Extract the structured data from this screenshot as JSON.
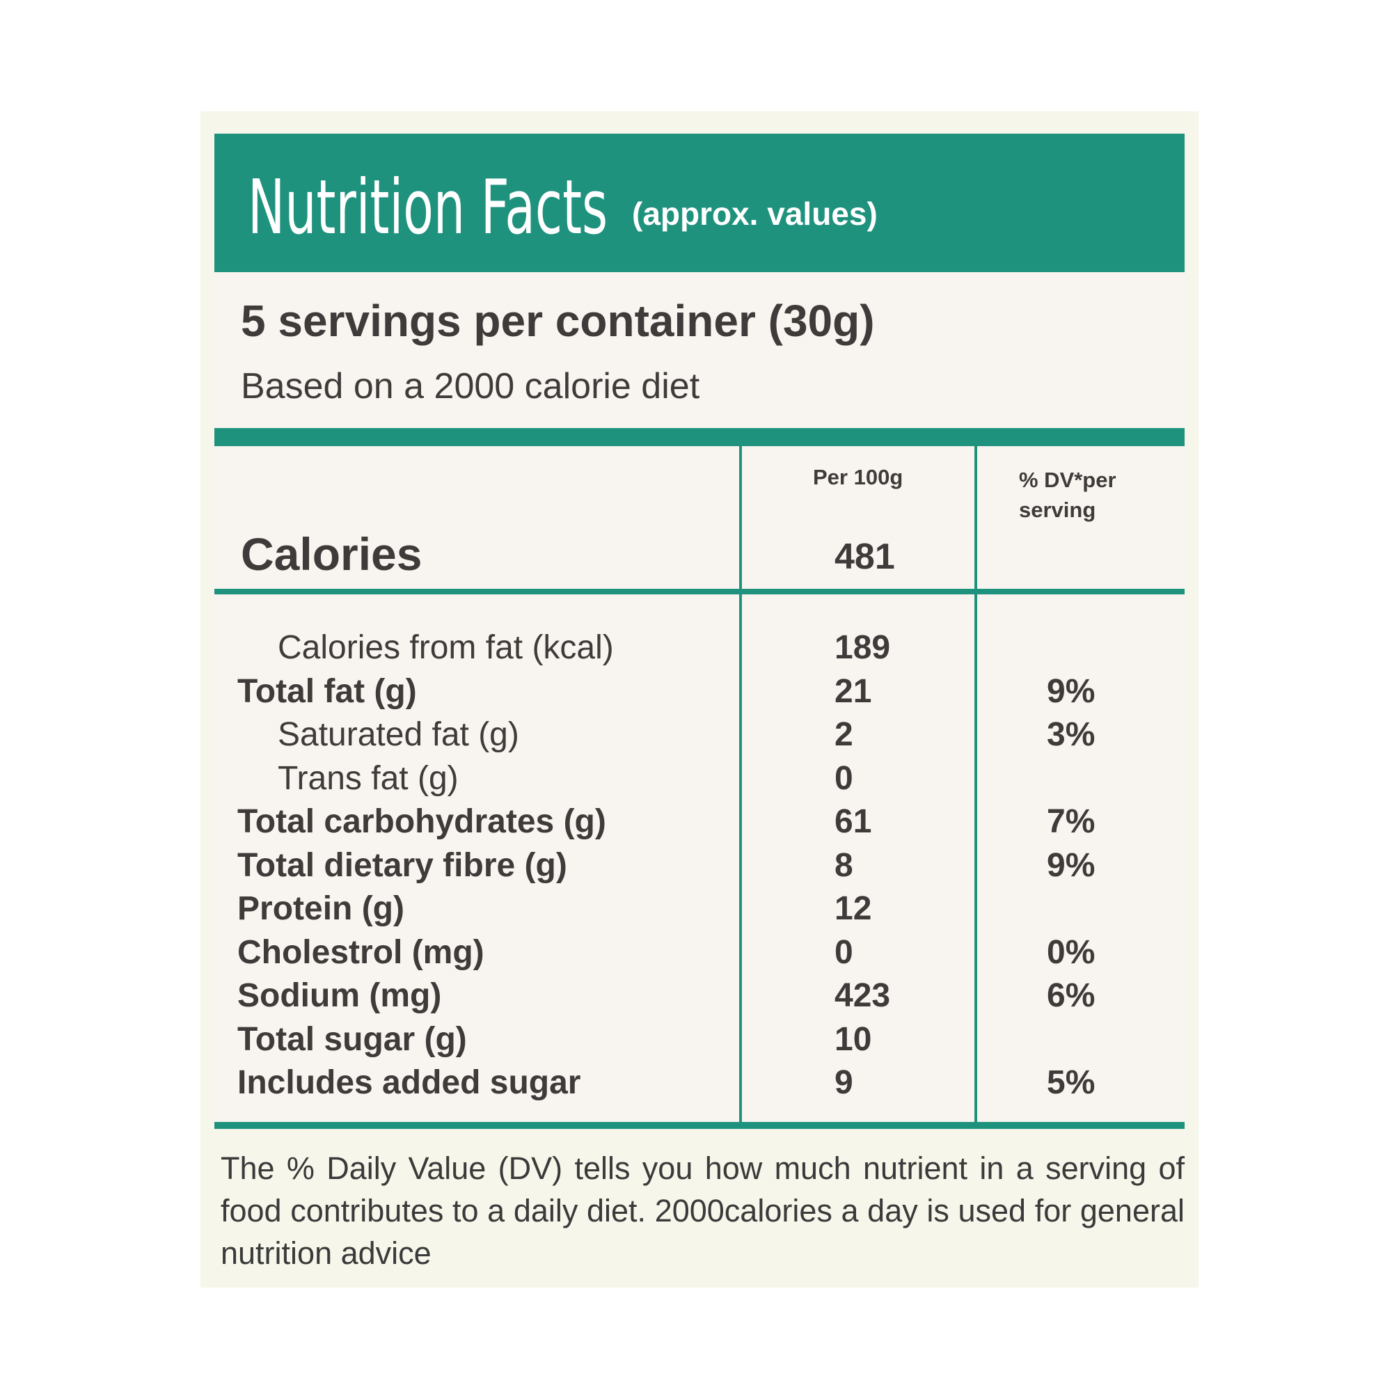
{
  "header": {
    "title": "Nutrition Facts",
    "subtitle": "(approx. values)"
  },
  "servings": "5 servings per container (30g)",
  "basis": "Based on a 2000 calorie diet",
  "table": {
    "columns": [
      "Per 100g",
      "% DV*per serving"
    ],
    "calories": {
      "label": "Calories",
      "value": 481
    },
    "rows": [
      {
        "label": "Calories from fat (kcal)",
        "value": 189
      },
      {
        "label": "Total fat (g)",
        "value": 21,
        "dv": "9%"
      },
      {
        "label": "Saturated fat (g)",
        "value": 2,
        "dv": "3%"
      },
      {
        "label": "Trans fat (g)",
        "value": 0
      },
      {
        "label": "Total carbohydrates (g)",
        "value": 61,
        "dv": "7%"
      },
      {
        "label": "Total dietary fibre (g)",
        "value": 8,
        "dv": "9%"
      },
      {
        "label": "Protein (g)",
        "value": 12
      },
      {
        "label": "Cholestrol (mg)",
        "value": 0,
        "dv": "0%"
      },
      {
        "label": "Sodium (mg)",
        "value": 423,
        "dv": "6%"
      },
      {
        "label": "Total sugar (g)",
        "value": 10
      },
      {
        "label": "Includes added sugar",
        "value": 9,
        "dv": "5%"
      }
    ]
  },
  "footnote": "The % Daily Value (DV) tells you how much nutrient in a serving of food contributes to a daily diet. 2000calories a day is used for general nutrition advice"
}
